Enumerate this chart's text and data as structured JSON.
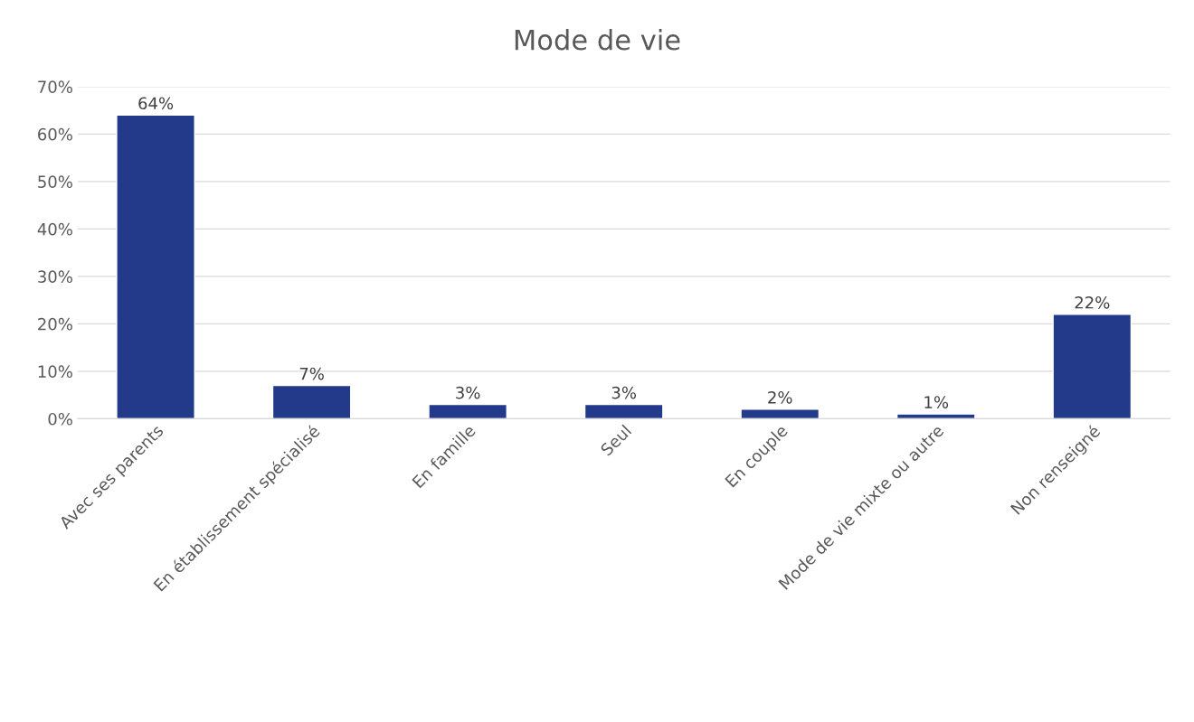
{
  "chart_data": {
    "type": "bar",
    "title": "Mode de vie",
    "categories": [
      "Avec ses parents",
      "En établissement spécialisé",
      "En famille",
      "Seul",
      "En couple",
      "Mode de vie mixte ou autre",
      "Non renseigné"
    ],
    "values": [
      64,
      7,
      3,
      3,
      2,
      1,
      22
    ],
    "value_labels": [
      "64%",
      "7%",
      "3%",
      "3%",
      "2%",
      "1%",
      "22%"
    ],
    "color": "#233a8b",
    "ylim": [
      0,
      70
    ],
    "yticks": [
      {
        "value": 0,
        "label": "0%"
      },
      {
        "value": 10,
        "label": "10%"
      },
      {
        "value": 20,
        "label": "20%"
      },
      {
        "value": 30,
        "label": "30%"
      },
      {
        "value": 40,
        "label": "40%"
      },
      {
        "value": 50,
        "label": "50%"
      },
      {
        "value": 60,
        "label": "60%"
      },
      {
        "value": 70,
        "label": "70%"
      }
    ],
    "grid": "y"
  }
}
